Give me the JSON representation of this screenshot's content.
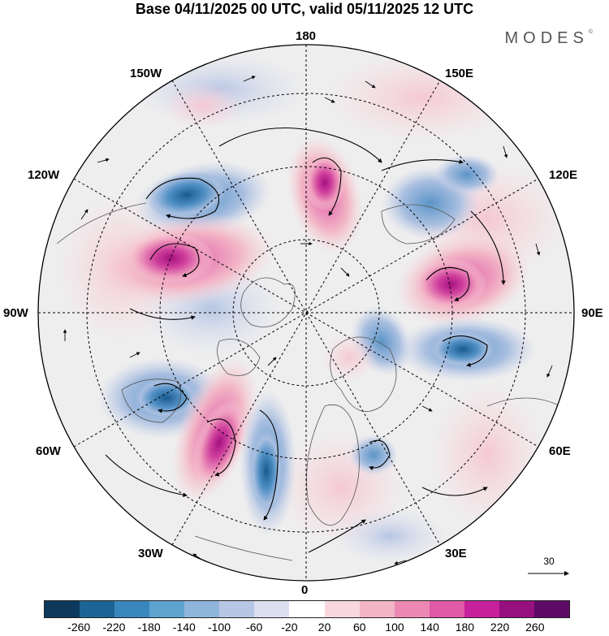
{
  "header": {
    "title": "Base 04/11/2025 00 UTC, valid 05/11/2025 12 UTC",
    "brand": "MODES",
    "brand_mark": "©"
  },
  "longitude_labels": {
    "deg180": "180",
    "deg150e": "150E",
    "deg120e": "120E",
    "deg90e": "90E",
    "deg60e": "60E",
    "deg30e": "30E",
    "deg0": "0",
    "deg30w": "30W",
    "deg60w": "60W",
    "deg90w": "90W",
    "deg120w": "120W",
    "deg150w": "150W"
  },
  "reference_vector": {
    "label": "30"
  },
  "colorbar": {
    "labels": [
      "-260",
      "-220",
      "-180",
      "-140",
      "-100",
      "-60",
      "-20",
      "20",
      "60",
      "100",
      "140",
      "180",
      "220",
      "260"
    ],
    "colors": [
      "#0d3a5c",
      "#1d6496",
      "#3a87bd",
      "#5da3cf",
      "#8fb5db",
      "#b7c6e4",
      "#dcdff0",
      "#ffffff",
      "#f8d8de",
      "#f2b5c6",
      "#ec88b3",
      "#e05aa8",
      "#c7209d",
      "#96107f",
      "#5e0966"
    ]
  }
}
